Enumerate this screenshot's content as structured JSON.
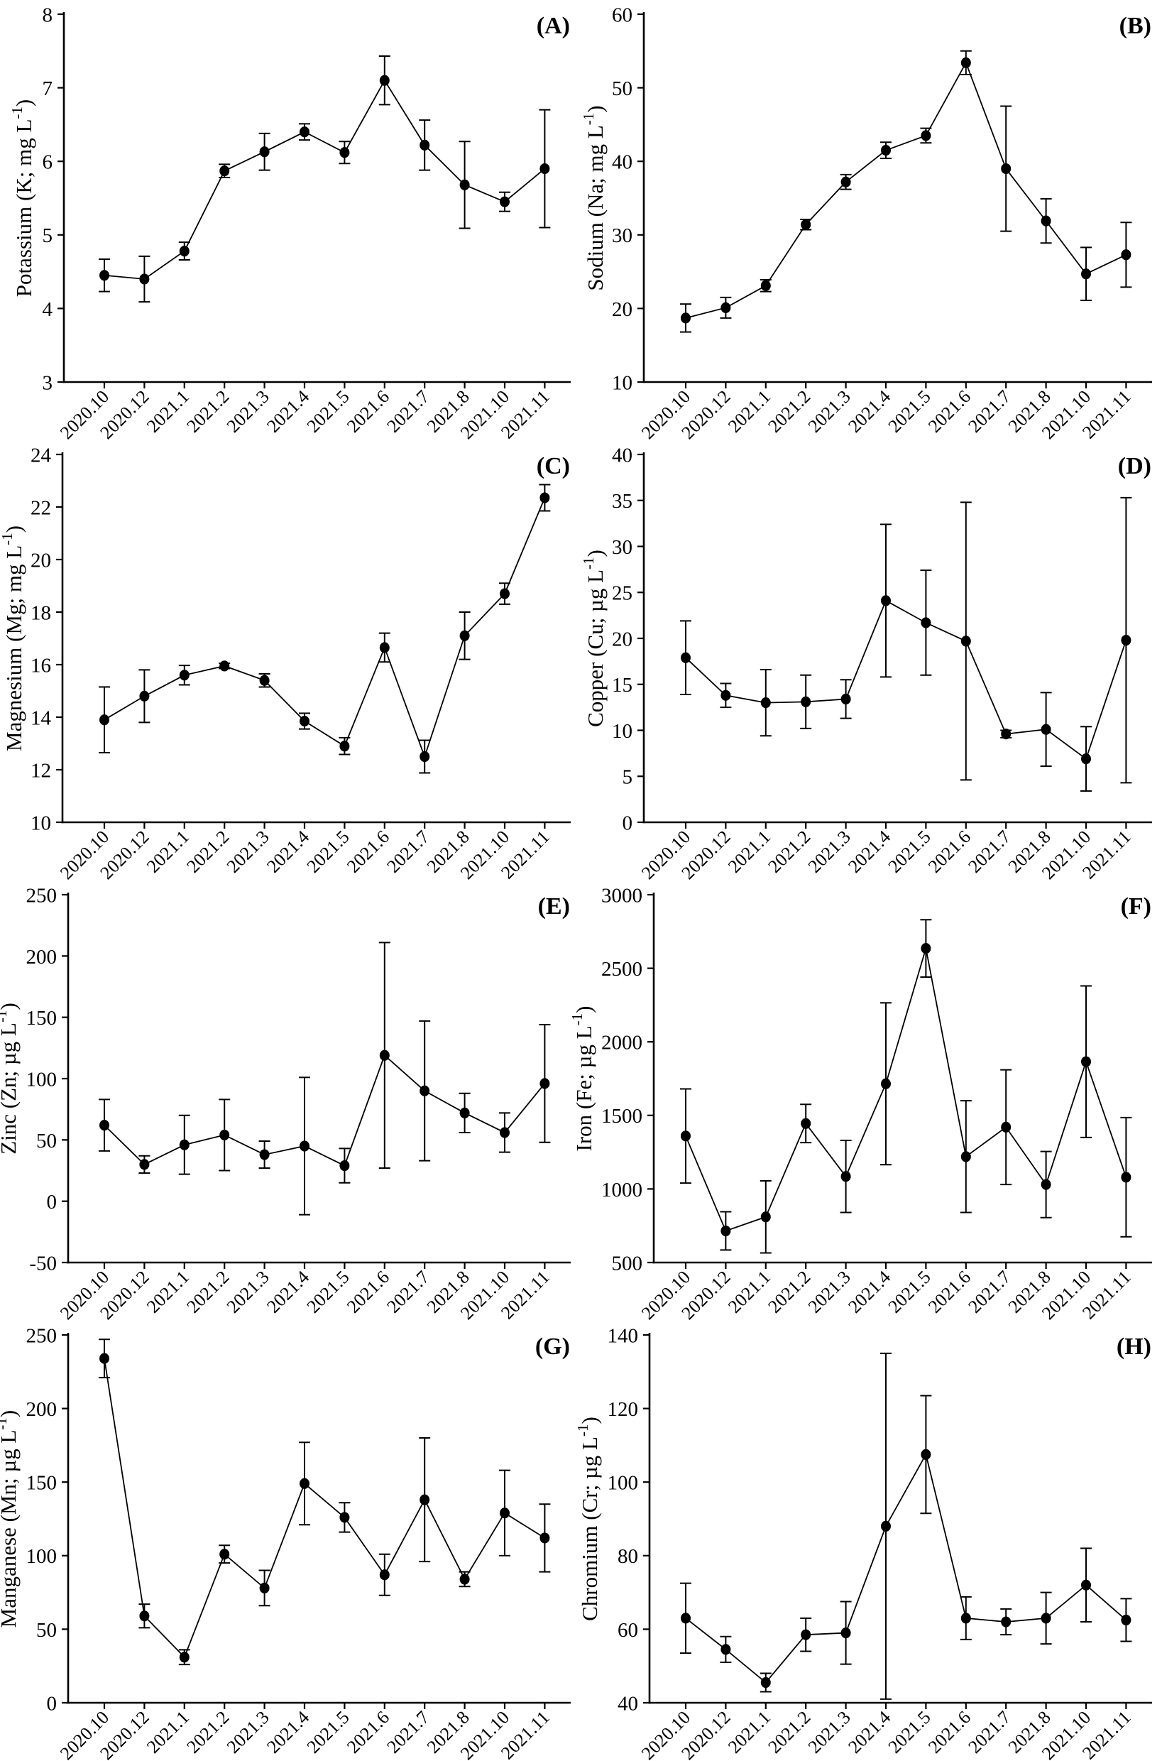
{
  "figure": {
    "background": "#ffffff",
    "ink_color": "#000000",
    "description_texts": {
      "panel_letters": [
        "(A)",
        "(B)",
        "(C)",
        "(D)",
        "(E)",
        "(F)",
        "(G)",
        "(H)"
      ]
    }
  },
  "chart_data": [
    {
      "type": "line",
      "panel_label": "(A)",
      "ylabel": "Potassium (K; mg L⁻¹)",
      "ylabel_parts": {
        "main": "Potassium (K; mg L",
        "sup": "-1",
        "close": ")"
      },
      "categories": [
        "2020.10",
        "2020.12",
        "2021.1",
        "2021.2",
        "2021.3",
        "2021.4",
        "2021.5",
        "2021.6",
        "2021.7",
        "2021.8",
        "2021.10",
        "2021.11"
      ],
      "values": [
        4.45,
        4.4,
        4.78,
        5.87,
        6.13,
        6.4,
        6.12,
        7.1,
        6.22,
        5.68,
        5.45,
        5.9
      ],
      "errors": [
        0.22,
        0.31,
        0.12,
        0.09,
        0.25,
        0.11,
        0.15,
        0.33,
        0.34,
        0.59,
        0.13,
        0.8
      ],
      "ylim": [
        3,
        8
      ],
      "y_ticks": [
        3,
        4,
        5,
        6,
        7,
        8
      ],
      "marker": "filled-circle",
      "error_bars": true,
      "grid": false,
      "legend": "none"
    },
    {
      "type": "line",
      "panel_label": "(B)",
      "ylabel": "Sodium (Na; mg L⁻¹)",
      "ylabel_parts": {
        "main": "Sodium (Na; mg L",
        "sup": "-1",
        "close": ")"
      },
      "categories": [
        "2020.10",
        "2020.12",
        "2021.1",
        "2021.2",
        "2021.3",
        "2021.4",
        "2021.5",
        "2021.6",
        "2021.7",
        "2021.8",
        "2021.10",
        "2021.11"
      ],
      "values": [
        18.7,
        20.1,
        23.1,
        31.4,
        37.2,
        41.5,
        43.5,
        53.4,
        39.0,
        31.9,
        24.7,
        27.3
      ],
      "errors": [
        1.9,
        1.4,
        0.8,
        0.7,
        1.0,
        1.1,
        1.0,
        1.6,
        8.5,
        3.0,
        3.6,
        4.4
      ],
      "ylim": [
        10,
        60
      ],
      "y_ticks": [
        10,
        20,
        30,
        40,
        50,
        60
      ],
      "marker": "filled-circle",
      "error_bars": true,
      "grid": false,
      "legend": "none"
    },
    {
      "type": "line",
      "panel_label": "(C)",
      "ylabel": "Magnesium (Mg; mg L⁻¹)",
      "ylabel_parts": {
        "main": "Magnesium (Mg; mg L",
        "sup": "-1",
        "close": ")"
      },
      "categories": [
        "2020.10",
        "2020.12",
        "2021.1",
        "2021.2",
        "2021.3",
        "2021.4",
        "2021.5",
        "2021.6",
        "2021.7",
        "2021.8",
        "2021.10",
        "2021.11"
      ],
      "values": [
        13.9,
        14.8,
        15.6,
        15.95,
        15.4,
        13.85,
        12.9,
        16.65,
        12.5,
        17.1,
        18.7,
        22.35
      ],
      "errors": [
        1.25,
        1.0,
        0.37,
        0.1,
        0.25,
        0.3,
        0.32,
        0.55,
        0.62,
        0.9,
        0.4,
        0.5
      ],
      "ylim": [
        10,
        24
      ],
      "y_ticks": [
        10,
        12,
        14,
        16,
        18,
        20,
        22,
        24
      ],
      "marker": "filled-circle",
      "error_bars": true,
      "grid": false,
      "legend": "none"
    },
    {
      "type": "line",
      "panel_label": "(D)",
      "ylabel": "Copper (Cu; µg L⁻¹)",
      "ylabel_parts": {
        "main": "Copper (Cu; µg L",
        "sup": "-1",
        "close": ")"
      },
      "categories": [
        "2020.10",
        "2020.12",
        "2021.1",
        "2021.2",
        "2021.3",
        "2021.4",
        "2021.5",
        "2021.6",
        "2021.7",
        "2021.8",
        "2021.10",
        "2021.11"
      ],
      "values": [
        17.9,
        13.8,
        13.0,
        13.1,
        13.4,
        24.1,
        21.7,
        19.7,
        9.6,
        10.1,
        6.9,
        19.8
      ],
      "errors": [
        4.0,
        1.3,
        3.6,
        2.9,
        2.1,
        8.3,
        5.7,
        15.1,
        0.4,
        4.0,
        3.5,
        15.5
      ],
      "ylim": [
        0,
        40
      ],
      "y_ticks": [
        0,
        5,
        10,
        15,
        20,
        25,
        30,
        35,
        40
      ],
      "marker": "filled-circle",
      "error_bars": true,
      "grid": false,
      "legend": "none"
    },
    {
      "type": "line",
      "panel_label": "(E)",
      "ylabel": "Zinc (Zn; µg L⁻¹)",
      "ylabel_parts": {
        "main": "Zinc (Zn; µg L",
        "sup": "-1",
        "close": ")"
      },
      "categories": [
        "2020.10",
        "2020.12",
        "2021.1",
        "2021.2",
        "2021.3",
        "2021.4",
        "2021.5",
        "2021.6",
        "2021.7",
        "2021.8",
        "2021.10",
        "2021.11"
      ],
      "values": [
        62,
        30,
        46,
        54,
        38,
        45,
        29,
        119,
        90,
        72,
        56,
        96
      ],
      "errors": [
        21,
        7,
        24,
        29,
        11,
        56,
        14,
        92,
        57,
        16,
        16,
        48
      ],
      "ylim": [
        -50,
        250
      ],
      "y_ticks": [
        -50,
        0,
        50,
        100,
        150,
        200,
        250
      ],
      "marker": "filled-circle",
      "error_bars": true,
      "grid": false,
      "legend": "none"
    },
    {
      "type": "line",
      "panel_label": "(F)",
      "ylabel": "Iron (Fe; µg L⁻¹)",
      "ylabel_parts": {
        "main": "Iron (Fe; µg L",
        "sup": "-1",
        "close": ")"
      },
      "categories": [
        "2020.10",
        "2020.12",
        "2021.1",
        "2021.2",
        "2021.3",
        "2021.4",
        "2021.5",
        "2021.6",
        "2021.7",
        "2021.8",
        "2021.10",
        "2021.11"
      ],
      "values": [
        1360,
        715,
        810,
        1445,
        1085,
        1715,
        2635,
        1220,
        1420,
        1030,
        1865,
        1080
      ],
      "errors": [
        320,
        130,
        245,
        130,
        245,
        550,
        195,
        380,
        390,
        225,
        515,
        405
      ],
      "ylim": [
        500,
        3000
      ],
      "y_ticks": [
        500,
        1000,
        1500,
        2000,
        2500,
        3000
      ],
      "marker": "filled-circle",
      "error_bars": true,
      "grid": false,
      "legend": "none"
    },
    {
      "type": "line",
      "panel_label": "(G)",
      "ylabel": "Manganese (Mn; µg L⁻¹)",
      "ylabel_parts": {
        "main": "Manganese (Mn; µg L",
        "sup": "-1",
        "close": ")"
      },
      "categories": [
        "2020.10",
        "2020.12",
        "2021.1",
        "2021.2",
        "2021.3",
        "2021.4",
        "2021.5",
        "2021.6",
        "2021.7",
        "2021.8",
        "2021.10",
        "2021.11"
      ],
      "values": [
        234,
        59,
        31,
        101,
        78,
        149,
        126,
        87,
        138,
        84,
        129,
        112
      ],
      "errors": [
        13,
        8,
        5,
        6,
        12,
        28,
        10,
        14,
        42,
        5,
        29,
        23
      ],
      "ylim": [
        0,
        250
      ],
      "y_ticks": [
        0,
        50,
        100,
        150,
        200,
        250
      ],
      "marker": "filled-circle",
      "error_bars": true,
      "grid": false,
      "legend": "none"
    },
    {
      "type": "line",
      "panel_label": "(H)",
      "ylabel": "Chromium (Cr; µg L⁻¹)",
      "ylabel_parts": {
        "main": "Chromium (Cr; µg L",
        "sup": "-1",
        "close": ")"
      },
      "categories": [
        "2020.10",
        "2020.12",
        "2021.1",
        "2021.2",
        "2021.3",
        "2021.4",
        "2021.5",
        "2021.6",
        "2021.7",
        "2021.8",
        "2021.10",
        "2021.11"
      ],
      "values": [
        63,
        54.5,
        45.5,
        58.5,
        59,
        88,
        107.5,
        63,
        62,
        63,
        72,
        62.5
      ],
      "errors": [
        9.5,
        3.5,
        2.5,
        4.5,
        8.5,
        47,
        16,
        5.8,
        3.5,
        7,
        10,
        5.8
      ],
      "ylim": [
        40,
        140
      ],
      "y_ticks": [
        40,
        60,
        80,
        100,
        120,
        140
      ],
      "marker": "filled-circle",
      "error_bars": true,
      "grid": false,
      "legend": "none"
    }
  ]
}
